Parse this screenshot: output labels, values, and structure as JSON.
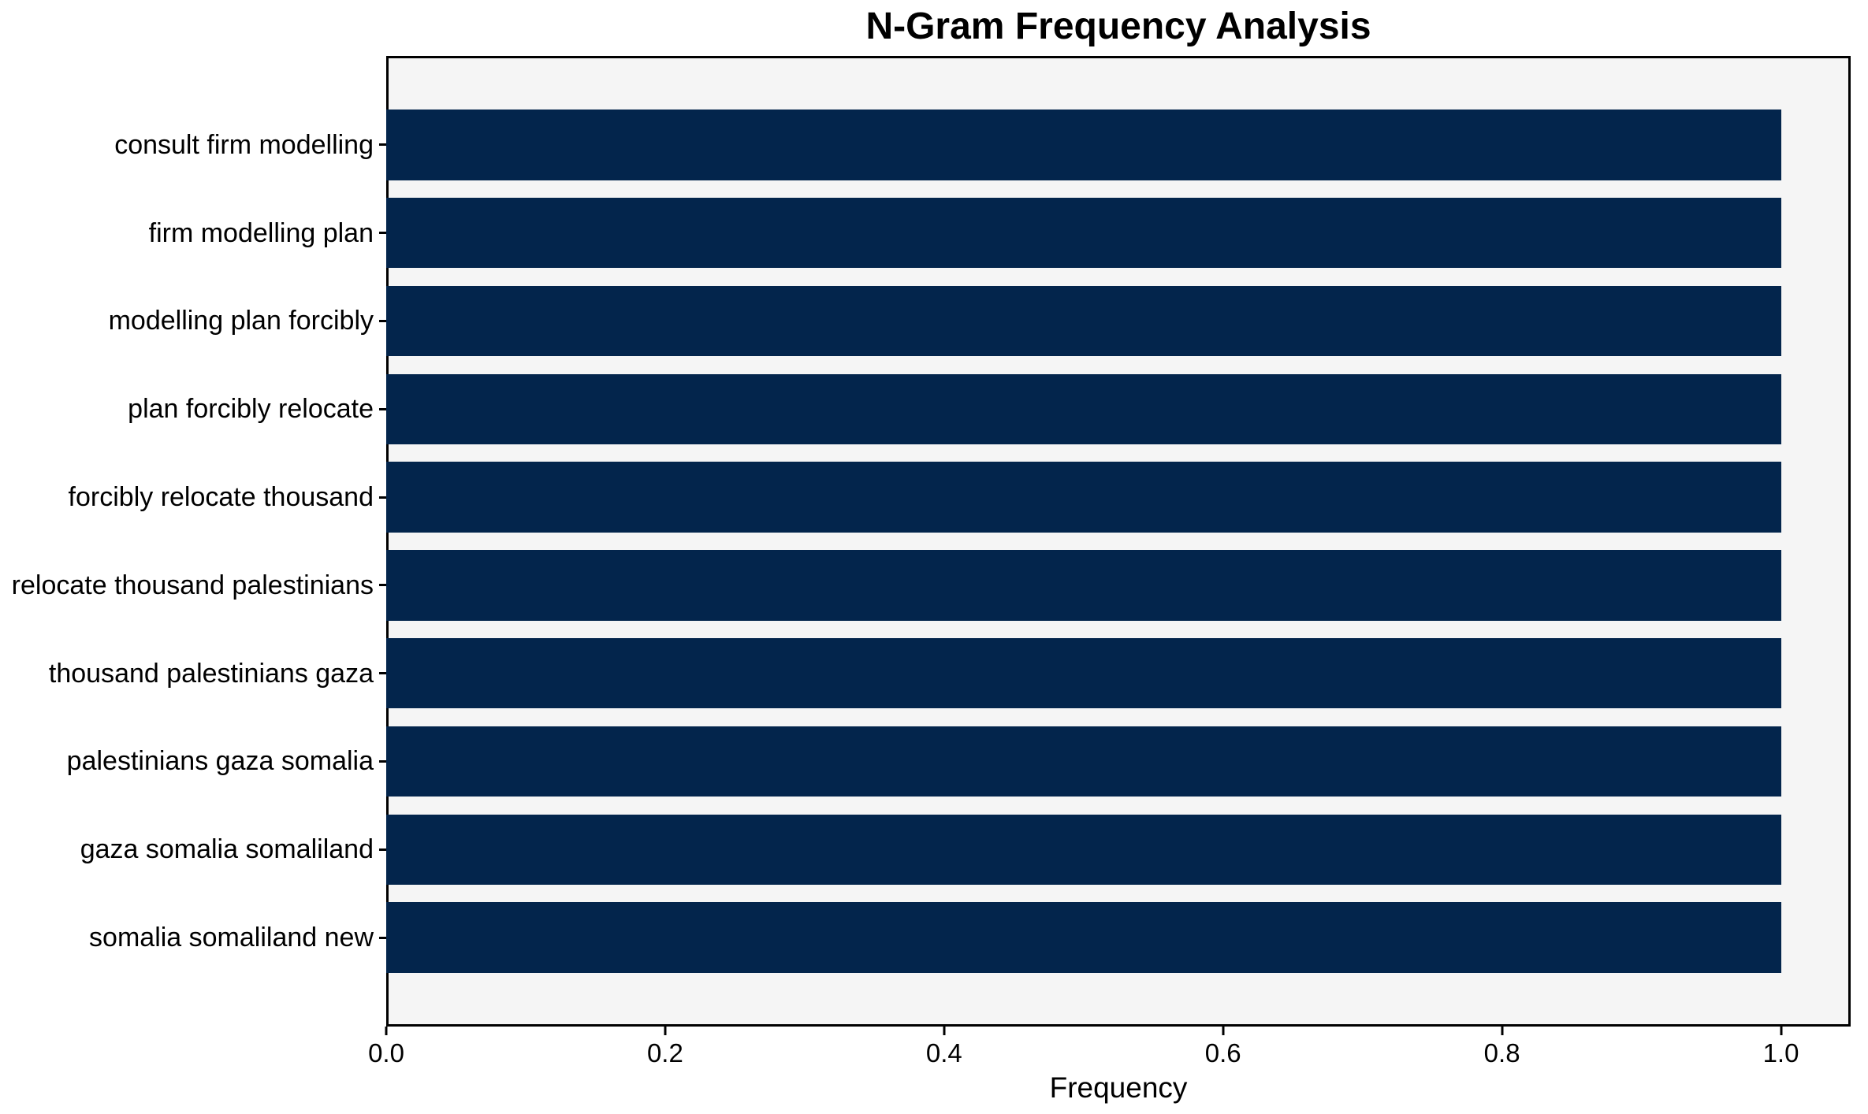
{
  "chart_data": {
    "type": "bar",
    "orientation": "horizontal",
    "title": "N-Gram Frequency Analysis",
    "xlabel": "Frequency",
    "ylabel": "",
    "categories": [
      "consult firm modelling",
      "firm modelling plan",
      "modelling plan forcibly",
      "plan forcibly relocate",
      "forcibly relocate thousand",
      "relocate thousand palestinians",
      "thousand palestinians gaza",
      "palestinians gaza somalia",
      "gaza somalia somaliland",
      "somalia somaliland new"
    ],
    "values": [
      1.0,
      1.0,
      1.0,
      1.0,
      1.0,
      1.0,
      1.0,
      1.0,
      1.0,
      1.0
    ],
    "xticks": [
      0.0,
      0.2,
      0.4,
      0.6,
      0.8,
      1.0
    ],
    "xlim": [
      0,
      1.05
    ],
    "grid": false,
    "legend": null,
    "colors": {
      "bar": "#03254c",
      "plot_background": "#f5f5f5",
      "figure_background": "#ffffff",
      "spine": "#000000",
      "text": "#000000"
    }
  }
}
